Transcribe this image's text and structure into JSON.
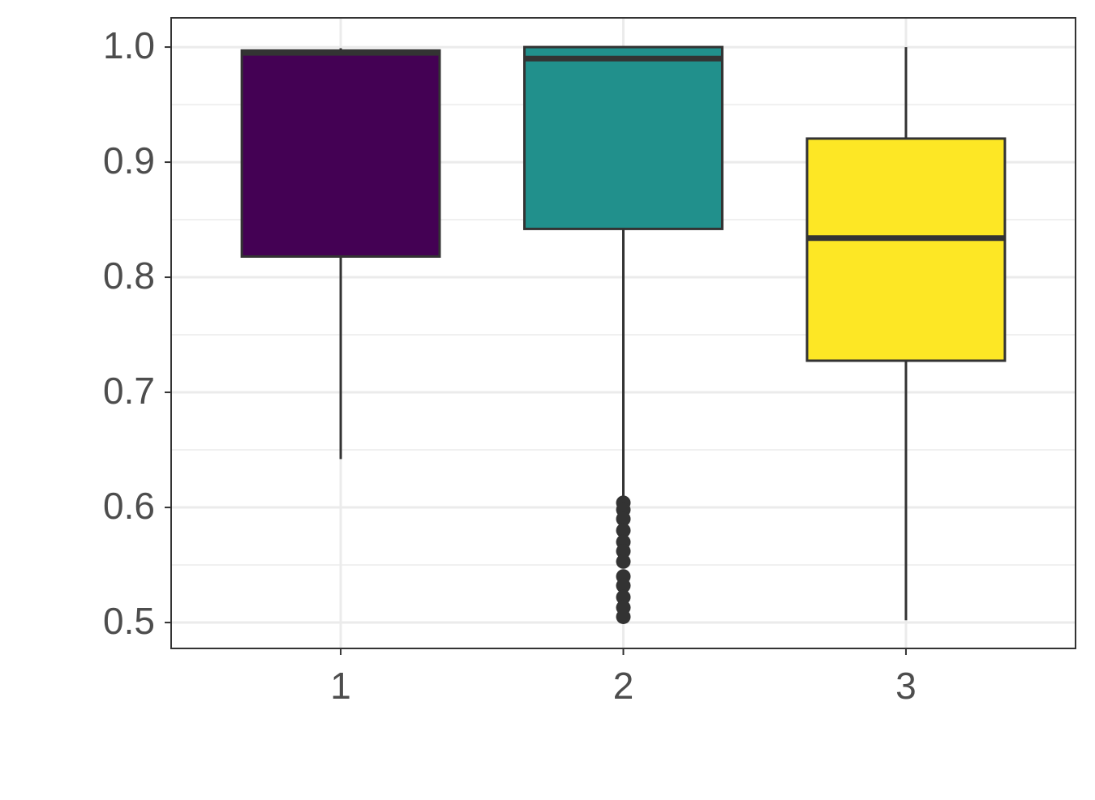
{
  "chart_data": {
    "type": "box",
    "categories": [
      "1",
      "2",
      "3"
    ],
    "colors": [
      "#440154",
      "#21908C",
      "#FDE725"
    ],
    "boxes": [
      {
        "min": 0.642,
        "q1": 0.818,
        "median": 0.995,
        "q3": 0.997,
        "max": 0.999,
        "outliers": []
      },
      {
        "min": 0.604,
        "q1": 0.842,
        "median": 0.99,
        "q3": 1.0,
        "max": 1.0,
        "outliers": [
          0.604,
          0.598,
          0.59,
          0.58,
          0.57,
          0.562,
          0.553,
          0.54,
          0.532,
          0.522,
          0.513,
          0.505
        ]
      },
      {
        "min": 0.502,
        "q1": 0.7275,
        "median": 0.834,
        "q3": 0.9205,
        "max": 1.0,
        "outliers": []
      }
    ],
    "ylim": [
      0.4775,
      1.0254
    ],
    "yticks": [
      {
        "value": 0.5,
        "label": "0.5"
      },
      {
        "value": 0.6,
        "label": "0.6"
      },
      {
        "value": 0.7,
        "label": "0.7"
      },
      {
        "value": 0.8,
        "label": "0.8"
      },
      {
        "value": 0.9,
        "label": "0.9"
      },
      {
        "value": 1.0,
        "label": "1.0"
      }
    ],
    "grid": true
  }
}
